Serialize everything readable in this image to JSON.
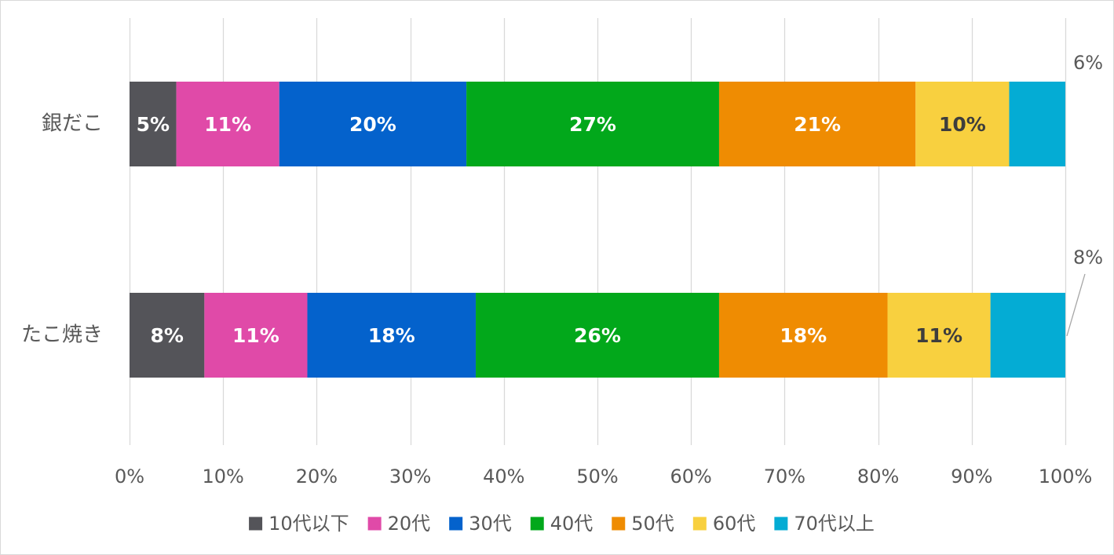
{
  "chart_data": {
    "type": "bar",
    "orientation": "horizontal",
    "stacked": "percent",
    "categories": [
      "銀だこ",
      "たこ焼き"
    ],
    "series": [
      {
        "name": "10代以下",
        "color": "#545459",
        "values": [
          5,
          8
        ],
        "labels": [
          "5%",
          "8%"
        ],
        "label_color": "#ffffff"
      },
      {
        "name": "20代",
        "color": "#e04aa8",
        "values": [
          11,
          11
        ],
        "labels": [
          "11%",
          "11%"
        ],
        "label_color": "#ffffff"
      },
      {
        "name": "30代",
        "color": "#0462cc",
        "values": [
          20,
          18
        ],
        "labels": [
          "20%",
          "18%"
        ],
        "label_color": "#ffffff"
      },
      {
        "name": "40代",
        "color": "#02a81b",
        "values": [
          27,
          26
        ],
        "labels": [
          "27%",
          "26%"
        ],
        "label_color": "#ffffff"
      },
      {
        "name": "50代",
        "color": "#ef8c02",
        "values": [
          21,
          18
        ],
        "labels": [
          "21%",
          "18%"
        ],
        "label_color": "#ffffff"
      },
      {
        "name": "60代",
        "color": "#f8d03f",
        "values": [
          10,
          11
        ],
        "labels": [
          "10%",
          "11%"
        ],
        "label_color": "#3d3d3d"
      },
      {
        "name": "70代以上",
        "color": "#04acd4",
        "values": [
          6,
          8
        ],
        "labels": [
          "6%",
          "8%"
        ],
        "label_color": "#595959",
        "label_outside": true
      }
    ],
    "x_ticks": [
      "0%",
      "10%",
      "20%",
      "30%",
      "40%",
      "50%",
      "60%",
      "70%",
      "80%",
      "90%",
      "100%"
    ],
    "xlim": [
      0,
      100
    ],
    "grid": true,
    "legend_position": "bottom",
    "title": "",
    "xlabel": "",
    "ylabel": ""
  }
}
